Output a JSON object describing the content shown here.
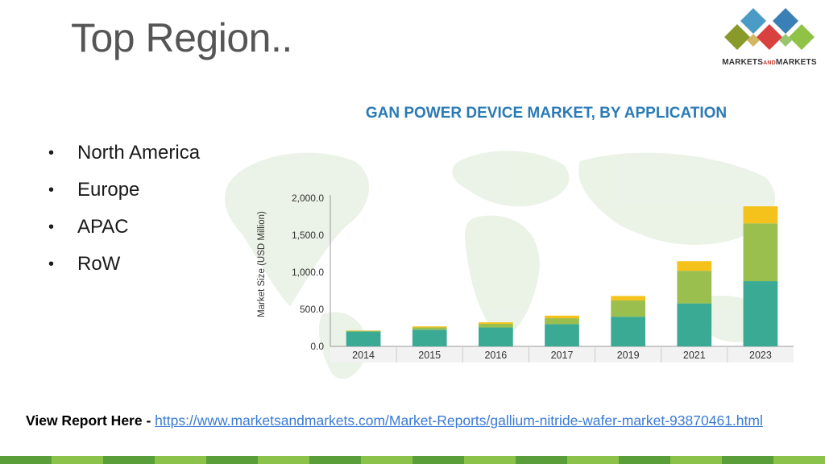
{
  "slide": {
    "title": "Top Region.."
  },
  "logo": {
    "text_main": "MARKETS",
    "text_and": "AND",
    "text_end": "MARKETS",
    "colors": [
      "#3a8fbf",
      "#8bbf3a",
      "#d93a3a",
      "#8a8a2a",
      "#2f6fa8"
    ]
  },
  "bullets": {
    "items": [
      "North America",
      "Europe",
      "APAC",
      "RoW"
    ]
  },
  "chart_data": {
    "type": "bar",
    "stacked": true,
    "title": "GAN POWER DEVICE MARKET, BY APPLICATION",
    "xlabel": "",
    "ylabel": "Market Size (USD Million)",
    "ylim": [
      0,
      2000
    ],
    "yticks": [
      "0.0",
      "500.0",
      "1,000.0",
      "1,500.0",
      "2,000.0"
    ],
    "ytick_values": [
      0,
      500,
      1000,
      1500,
      2000
    ],
    "categories": [
      "2014",
      "2015",
      "2016",
      "2017",
      "2019",
      "2021",
      "2023"
    ],
    "series": [
      {
        "values": [
          200,
          225,
          255,
          300,
          400,
          580,
          880
        ],
        "color": "#3aaa94"
      },
      {
        "values": [
          10,
          30,
          50,
          80,
          220,
          440,
          780
        ],
        "color": "#9bbf4f"
      },
      {
        "values": [
          5,
          15,
          20,
          35,
          60,
          130,
          230
        ],
        "color": "#f5c21b"
      }
    ],
    "grid": false,
    "legend": "none"
  },
  "footer": {
    "label": "View Report Here - ",
    "link": "https://www.marketsandmarkets.com/Market-Reports/gallium-nitride-wafer-market-93870461.html"
  },
  "stripe_colors": [
    "#5a9e3a",
    "#8bc34a"
  ]
}
